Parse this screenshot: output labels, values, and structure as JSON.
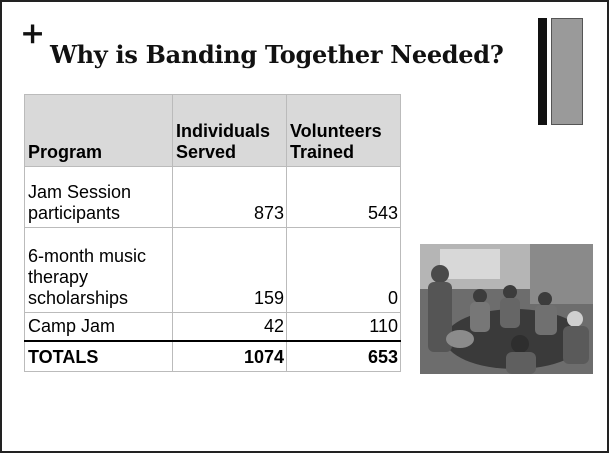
{
  "slide": {
    "plus": "+",
    "title": "Why is Banding Together Needed?",
    "table": {
      "header": [
        "Program",
        "Individuals Served",
        "Volunteers Trained"
      ],
      "rows": [
        [
          "Jam Session participants",
          873,
          543
        ],
        [
          "6-month music therapy scholarships",
          159,
          0
        ],
        [
          "Camp Jam",
          42,
          110
        ]
      ],
      "totals": [
        "TOTALS",
        1074,
        653
      ]
    }
  }
}
